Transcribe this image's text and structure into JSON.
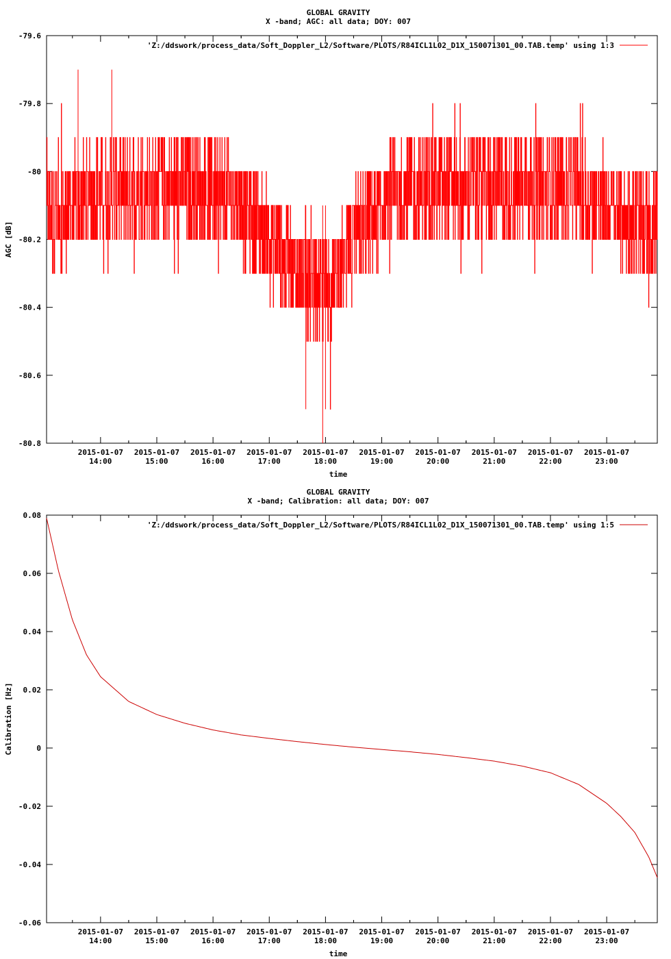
{
  "chart_data": [
    {
      "type": "line",
      "title_line1": "GLOBAL GRAVITY",
      "title_line2": "X -band; AGC: all data; DOY: 007",
      "xlabel": "time",
      "ylabel": "AGC [dB]",
      "legend": "'Z:/ddswork/process_data/Soft_Doppler_L2/Software/PLOTS/R84ICL1L02_D1X_150071301_00.TAB.temp' using 1:3",
      "legend_position": "top-right",
      "line_color": "#ff0000",
      "ylim": [
        -80.8,
        -79.6
      ],
      "yticks": [
        -79.6,
        -79.8,
        -80,
        -80.2,
        -80.4,
        -80.6,
        -80.8
      ],
      "ytick_labels": [
        "-79.6",
        "-79.8",
        "-80",
        "-80.2",
        "-80.4",
        "-80.6",
        "-80.8"
      ],
      "xlim_hours": [
        13.04,
        23.9
      ],
      "xtick_hours": [
        14,
        15,
        16,
        17,
        18,
        19,
        20,
        21,
        22,
        23
      ],
      "xtick_date": "2015-01-07",
      "xtick_times": [
        "14:00",
        "15:00",
        "16:00",
        "17:00",
        "18:00",
        "19:00",
        "20:00",
        "21:00",
        "22:00",
        "23:00"
      ],
      "series": [
        {
          "x_hours": [
            13.04,
            13.5,
            14.0,
            14.5,
            15.0,
            15.5,
            16.0,
            16.5,
            17.0,
            17.5,
            17.8,
            18.0,
            18.2,
            18.5,
            19.0,
            19.5,
            20.0,
            20.5,
            21.0,
            21.5,
            22.0,
            22.5,
            23.0,
            23.5,
            23.9
          ],
          "y_base": [
            -80.15,
            -80.1,
            -80.05,
            -80.05,
            -80.05,
            -80.05,
            -80.05,
            -80.1,
            -80.2,
            -80.3,
            -80.35,
            -80.35,
            -80.3,
            -80.2,
            -80.1,
            -80.05,
            -80.05,
            -80.05,
            -80.05,
            -80.05,
            -80.05,
            -80.05,
            -80.1,
            -80.15,
            -80.15
          ],
          "y_spread": [
            0.15,
            0.15,
            0.15,
            0.15,
            0.15,
            0.15,
            0.15,
            0.15,
            0.15,
            0.15,
            0.15,
            0.15,
            0.15,
            0.15,
            0.15,
            0.15,
            0.15,
            0.15,
            0.15,
            0.15,
            0.15,
            0.15,
            0.15,
            0.15,
            0.15
          ],
          "y_min": -80.8,
          "y_max": -79.7
        }
      ]
    },
    {
      "type": "line",
      "title_line1": "GLOBAL GRAVITY",
      "title_line2": "X -band; Calibration: all data; DOY: 007",
      "xlabel": "time",
      "ylabel": "Calibration [Hz]",
      "legend": "'Z:/ddswork/process_data/Soft_Doppler_L2/Software/PLOTS/R84ICL1L02_D1X_150071301_00.TAB.temp' using 1:5",
      "legend_position": "top-right",
      "line_color": "#cc0000",
      "ylim": [
        -0.06,
        0.08
      ],
      "yticks": [
        0.08,
        0.06,
        0.04,
        0.02,
        0,
        -0.02,
        -0.04,
        -0.06
      ],
      "ytick_labels": [
        "0.08",
        "0.06",
        "0.04",
        "0.02",
        "0",
        "-0.02",
        "-0.04",
        "-0.06"
      ],
      "xlim_hours": [
        13.04,
        23.9
      ],
      "xtick_hours": [
        14,
        15,
        16,
        17,
        18,
        19,
        20,
        21,
        22,
        23
      ],
      "xtick_date": "2015-01-07",
      "xtick_times": [
        "14:00",
        "15:00",
        "16:00",
        "17:00",
        "18:00",
        "19:00",
        "20:00",
        "21:00",
        "22:00",
        "23:00"
      ],
      "series": [
        {
          "x_hours": [
            13.04,
            13.25,
            13.5,
            13.75,
            14.0,
            14.5,
            15.0,
            15.5,
            16.0,
            16.5,
            17.0,
            17.5,
            18.0,
            18.5,
            19.0,
            19.5,
            20.0,
            20.5,
            21.0,
            21.5,
            22.0,
            22.5,
            23.0,
            23.25,
            23.5,
            23.75,
            23.9
          ],
          "values": [
            0.079,
            0.061,
            0.044,
            0.032,
            0.0245,
            0.016,
            0.0115,
            0.0085,
            0.0062,
            0.0045,
            0.0033,
            0.0022,
            0.0012,
            0.0003,
            -0.0005,
            -0.0013,
            -0.0022,
            -0.0033,
            -0.0045,
            -0.0062,
            -0.0085,
            -0.0125,
            -0.019,
            -0.0235,
            -0.029,
            -0.0375,
            -0.0445
          ]
        }
      ]
    }
  ]
}
